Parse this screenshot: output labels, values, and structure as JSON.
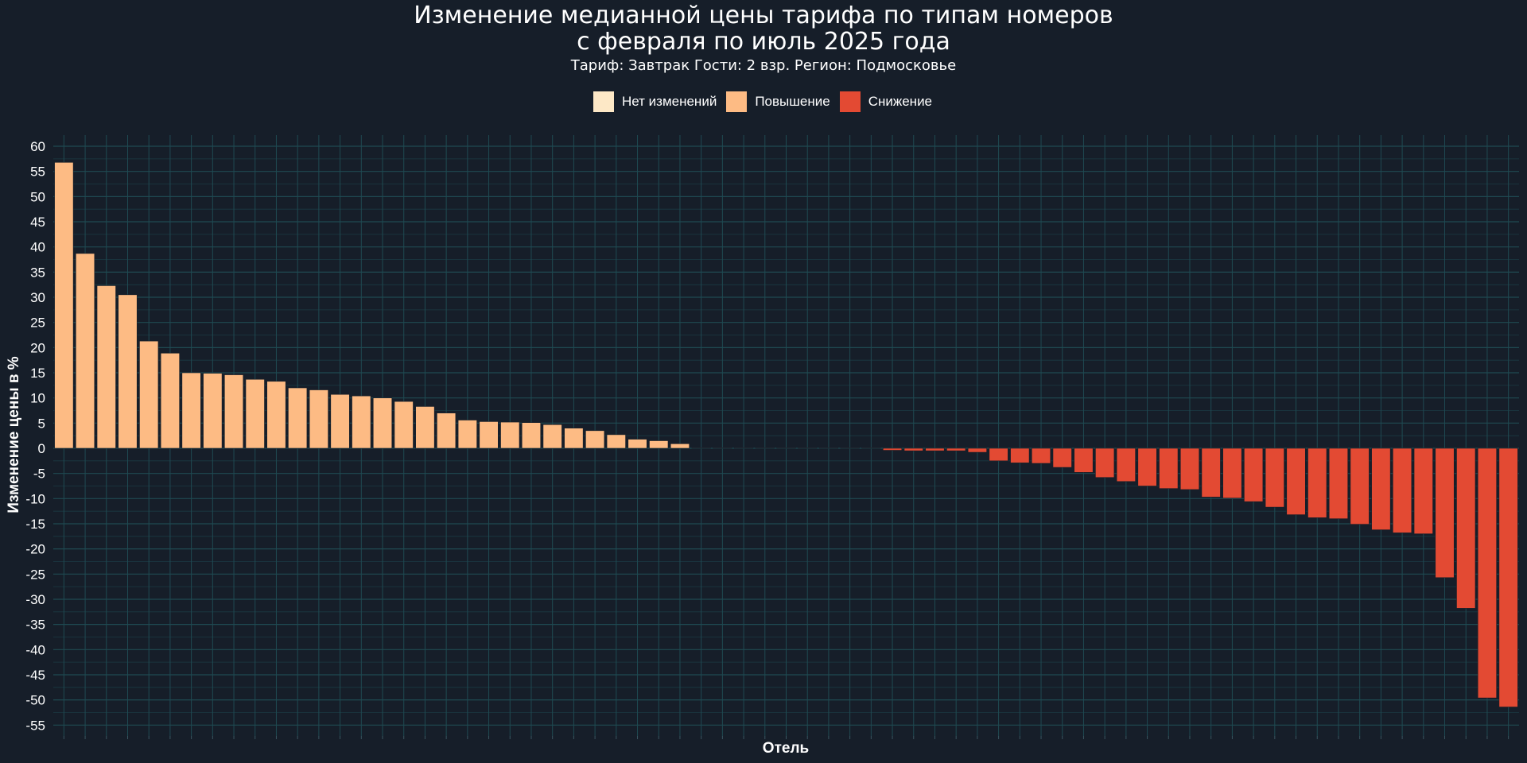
{
  "chart_data": {
    "type": "bar",
    "title_line1": "Изменение медианной цены тарифа по типам номеров",
    "title_line2": "с февраля по июль 2025 года",
    "subtitle": "Тариф: Завтрак Гости: 2 взр. Регион: Подмосковье",
    "xlabel": "Отель",
    "ylabel": "Изменение цены в %",
    "ylim": [
      -57,
      62
    ],
    "yticks": [
      60,
      55,
      50,
      45,
      40,
      35,
      30,
      25,
      20,
      15,
      10,
      5,
      0,
      -5,
      -10,
      -15,
      -20,
      -25,
      -30,
      -35,
      -40,
      -45,
      -50,
      -55
    ],
    "grid": true,
    "legend_position": "top-center",
    "legend": [
      {
        "label": "Нет изменений",
        "color": "#fde8c6"
      },
      {
        "label": "Повышение",
        "color": "#fdbb84"
      },
      {
        "label": "Снижение",
        "color": "#e34a33"
      }
    ],
    "values": [
      56.8,
      38.7,
      32.3,
      30.5,
      21.3,
      18.9,
      15.0,
      14.9,
      14.6,
      13.7,
      13.3,
      12.0,
      11.6,
      10.7,
      10.4,
      10.0,
      9.3,
      8.3,
      7.0,
      5.6,
      5.3,
      5.2,
      5.1,
      4.7,
      4.0,
      3.5,
      2.7,
      1.8,
      1.5,
      0.9,
      0.1,
      0.1,
      0.1,
      0.1,
      0.1,
      0.1,
      0.1,
      0.1,
      0.1,
      -0.4,
      -0.5,
      -0.5,
      -0.5,
      -0.8,
      -2.5,
      -2.9,
      -3.0,
      -3.8,
      -4.8,
      -5.8,
      -6.6,
      -7.5,
      -8.0,
      -8.2,
      -9.7,
      -9.9,
      -10.6,
      -11.7,
      -13.2,
      -13.8,
      -14.0,
      -15.1,
      -16.2,
      -16.8,
      -17.0,
      -25.7,
      -31.8,
      -49.6,
      -51.4
    ]
  }
}
